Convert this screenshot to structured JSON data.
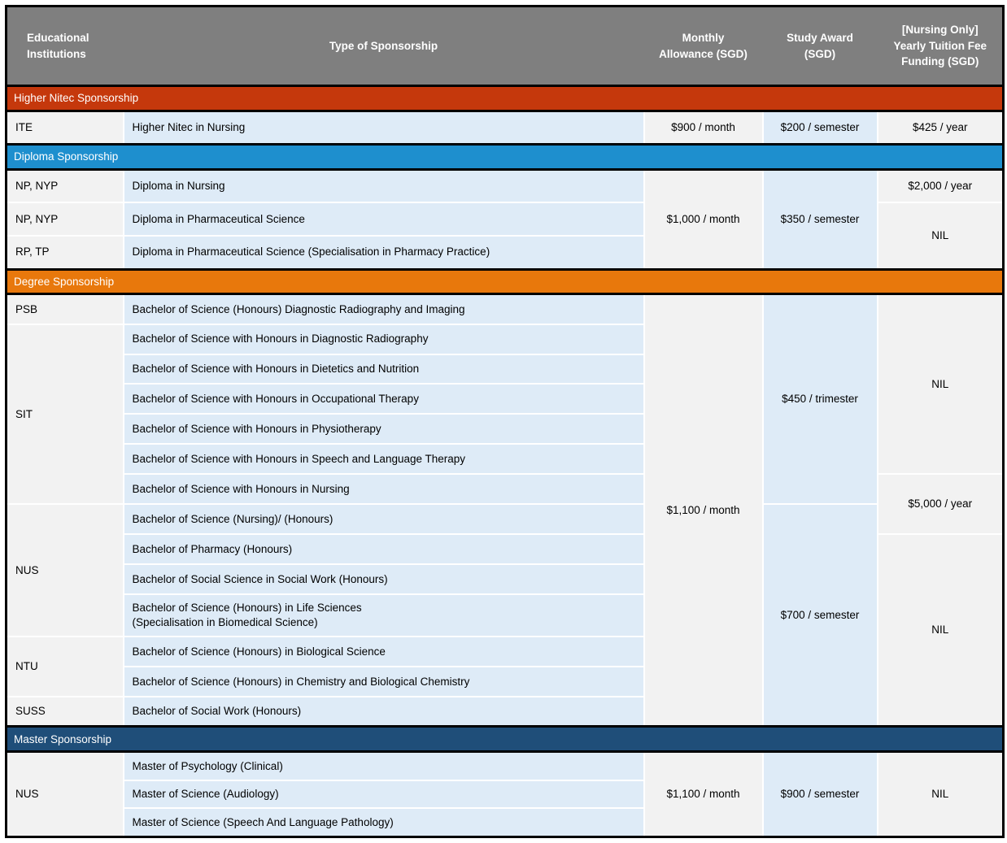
{
  "colors": {
    "header_bg": "#7F7F7F",
    "section_higher_nitec": "#C5380C",
    "section_diploma": "#1E8FCE",
    "section_degree": "#E8780C",
    "section_master": "#1F4E79",
    "cell_light_blue": "#DEEBF7",
    "cell_light_gray": "#F2F2F2"
  },
  "header": {
    "columns": [
      "Educational\nInstitutions",
      "Type of Sponsorship",
      "Monthly\nAllowance (SGD)",
      "Study Award\n(SGD)",
      "[Nursing Only]\nYearly Tuition Fee\nFunding (SGD)"
    ]
  },
  "sections": [
    {
      "title": "Higher Nitec Sponsorship",
      "rows": [
        {
          "institution": "ITE",
          "course": "Higher Nitec in Nursing",
          "monthly": "$900 / month",
          "award": "$200 / semester",
          "tuition": "$425 / year"
        }
      ]
    },
    {
      "title": "Diploma Sponsorship",
      "monthly": "$1,000 / month",
      "award": "$350 / semester",
      "rows": [
        {
          "institution": "NP, NYP",
          "course": "Diploma in Nursing",
          "tuition": "$2,000 / year"
        },
        {
          "institution": "NP, NYP",
          "course": "Diploma in Pharmaceutical Science",
          "tuition": "NIL"
        },
        {
          "institution": "RP, TP",
          "course": "Diploma in Pharmaceutical Science (Specialisation in Pharmacy Practice)"
        }
      ]
    },
    {
      "title": "Degree Sponsorship",
      "monthly": "$1,100 / month",
      "award_top": "$450 / trimester",
      "award_bottom": "$700 / semester",
      "tuition_top": "NIL",
      "tuition_mid": "$5,000 / year",
      "tuition_bottom": "NIL",
      "rows": [
        {
          "institution": "PSB",
          "course": "Bachelor of Science (Honours) Diagnostic Radiography and Imaging"
        },
        {
          "institution": "SIT",
          "course": "Bachelor of Science with Honours in Diagnostic Radiography"
        },
        {
          "course": "Bachelor of Science with Honours in Dietetics and Nutrition"
        },
        {
          "course": "Bachelor of Science with Honours in Occupational Therapy"
        },
        {
          "course": "Bachelor of Science with Honours in Physiotherapy"
        },
        {
          "course": "Bachelor of Science with Honours in Speech and Language Therapy"
        },
        {
          "course": "Bachelor of Science with Honours in Nursing"
        },
        {
          "institution": "NUS",
          "course": "Bachelor of Science (Nursing)/ (Honours)"
        },
        {
          "course": "Bachelor of Pharmacy (Honours)"
        },
        {
          "course": "Bachelor of Social Science in Social Work (Honours)"
        },
        {
          "course": "Bachelor of Science (Honours) in Life Sciences\n(Specialisation in Biomedical Science)"
        },
        {
          "institution": "NTU",
          "course": "Bachelor of Science (Honours) in Biological Science"
        },
        {
          "course": "Bachelor of Science (Honours) in Chemistry and Biological Chemistry"
        },
        {
          "institution": "SUSS",
          "course": "Bachelor of Social Work (Honours)"
        }
      ]
    },
    {
      "title": "Master Sponsorship",
      "institution": "NUS",
      "monthly": "$1,100 / month",
      "award": "$900 / semester",
      "tuition": "NIL",
      "rows": [
        {
          "course": "Master of Psychology (Clinical)"
        },
        {
          "course": "Master of Science (Audiology)"
        },
        {
          "course": "Master of Science (Speech And Language Pathology)"
        }
      ]
    }
  ]
}
